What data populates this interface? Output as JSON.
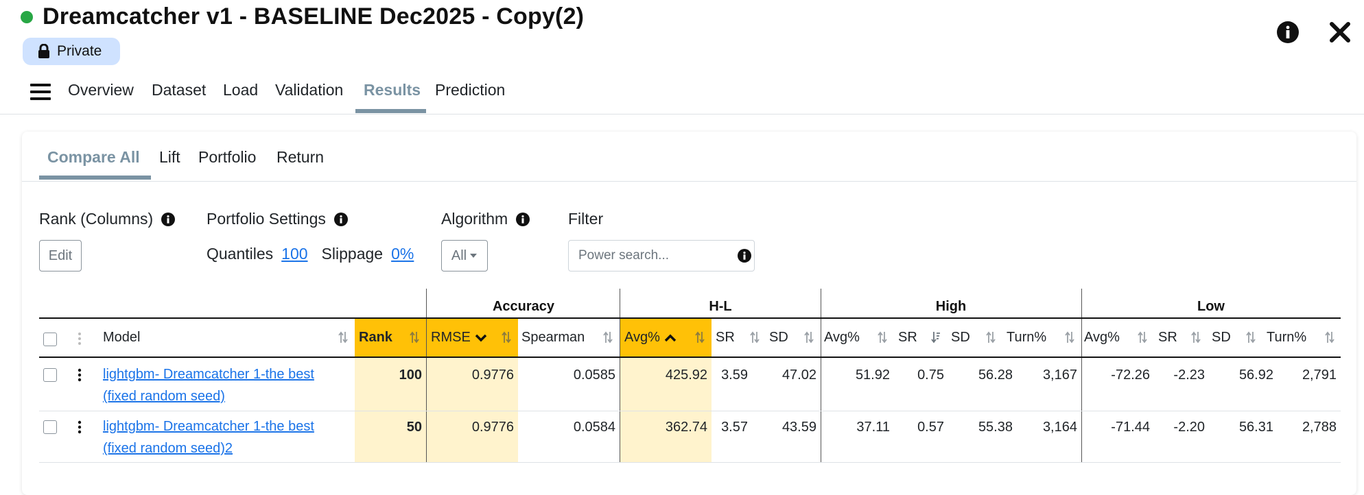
{
  "header": {
    "title": "Dreamcatcher v1 - BASELINE Dec2025 - Copy(2)",
    "status_color": "#28a745",
    "badge": "Private",
    "badge_icon": "lock-icon"
  },
  "nav": {
    "tabs": [
      "Overview",
      "Dataset",
      "Load",
      "Validation",
      "Results",
      "Prediction"
    ],
    "active": "Results"
  },
  "subtabs": {
    "tabs": [
      "Compare All",
      "Lift",
      "Portfolio",
      "Return"
    ],
    "active": "Compare All"
  },
  "controls": {
    "rank_label": "Rank (Columns)",
    "edit_label": "Edit",
    "portfolio_label": "Portfolio Settings",
    "quantiles_label": "Quantiles",
    "quantiles_value": "100",
    "slippage_label": "Slippage",
    "slippage_value": "0%",
    "algorithm_label": "Algorithm",
    "algorithm_value": "All",
    "filter_label": "Filter",
    "filter_placeholder": "Power search..."
  },
  "table": {
    "groups": [
      "Accuracy",
      "H-L",
      "High",
      "Low"
    ],
    "columns": [
      "Model",
      "Rank",
      "RMSE",
      "Spearman",
      "Avg%",
      "SR",
      "SD",
      "Avg%",
      "SR",
      "SD",
      "Turn%",
      "Avg%",
      "SR",
      "SD",
      "Turn%"
    ],
    "rows": [
      {
        "model_line1": "lightgbm- Dreamcatcher 1-the best",
        "model_line2": "(fixed random seed)",
        "values": [
          "100",
          "0.9776",
          "0.0585",
          "425.92",
          "3.59",
          "47.02",
          "51.92",
          "0.75",
          "56.28",
          "3,167",
          "-72.26",
          "-2.23",
          "56.92",
          "2,791"
        ]
      },
      {
        "model_line1": "lightgbm- Dreamcatcher 1-the best",
        "model_line2": "(fixed random seed)2",
        "values": [
          "50",
          "0.9776",
          "0.0584",
          "362.74",
          "3.57",
          "43.59",
          "37.11",
          "0.57",
          "55.38",
          "3,164",
          "-71.44",
          "-2.20",
          "56.31",
          "2,788"
        ]
      }
    ],
    "highlight_color": "#ffc107",
    "highlight_cell_color": "#fff3cd"
  }
}
